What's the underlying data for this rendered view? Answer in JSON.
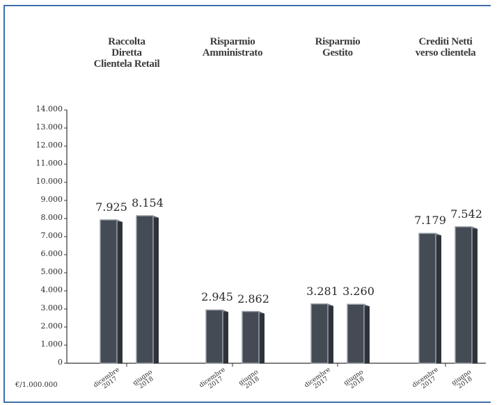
{
  "chart_data": {
    "type": "bar",
    "unit_label": "€/1.000.000",
    "ylim": [
      0,
      14000
    ],
    "y_ticks": [
      "0",
      "1.000",
      "2.000",
      "3.000",
      "4.000",
      "5.000",
      "6.000",
      "7.000",
      "8.000",
      "9.000",
      "10.000",
      "11.000",
      "12.000",
      "13.000",
      "14.000"
    ],
    "groups": [
      {
        "title": "Raccolta\nDiretta\nClientela Retail",
        "bars": [
          {
            "period": "dicembre\n2017",
            "value": 7925,
            "label": "7.925"
          },
          {
            "period": "giugno\n2018",
            "value": 8154,
            "label": "8.154"
          }
        ]
      },
      {
        "title": "Risparmio\nAmministrato",
        "bars": [
          {
            "period": "dicembre\n2017",
            "value": 2945,
            "label": "2.945"
          },
          {
            "period": "giugno\n2018",
            "value": 2862,
            "label": "2.862"
          }
        ]
      },
      {
        "title": "Risparmio\nGestito",
        "bars": [
          {
            "period": "dicembre\n2017",
            "value": 3281,
            "label": "3.281"
          },
          {
            "period": "giugno\n2018",
            "value": 3260,
            "label": "3.260"
          }
        ]
      },
      {
        "title": "Crediti Netti\nverso clientela",
        "bars": [
          {
            "period": "dicembre\n2017",
            "value": 7179,
            "label": "7.179"
          },
          {
            "period": "giugno\n2018",
            "value": 7542,
            "label": "7.542"
          }
        ]
      }
    ],
    "colors": {
      "bar": "#454b55",
      "bar_side": "#2e333a",
      "bar_edge": "#9aa1aa",
      "axis": "#333333"
    }
  }
}
